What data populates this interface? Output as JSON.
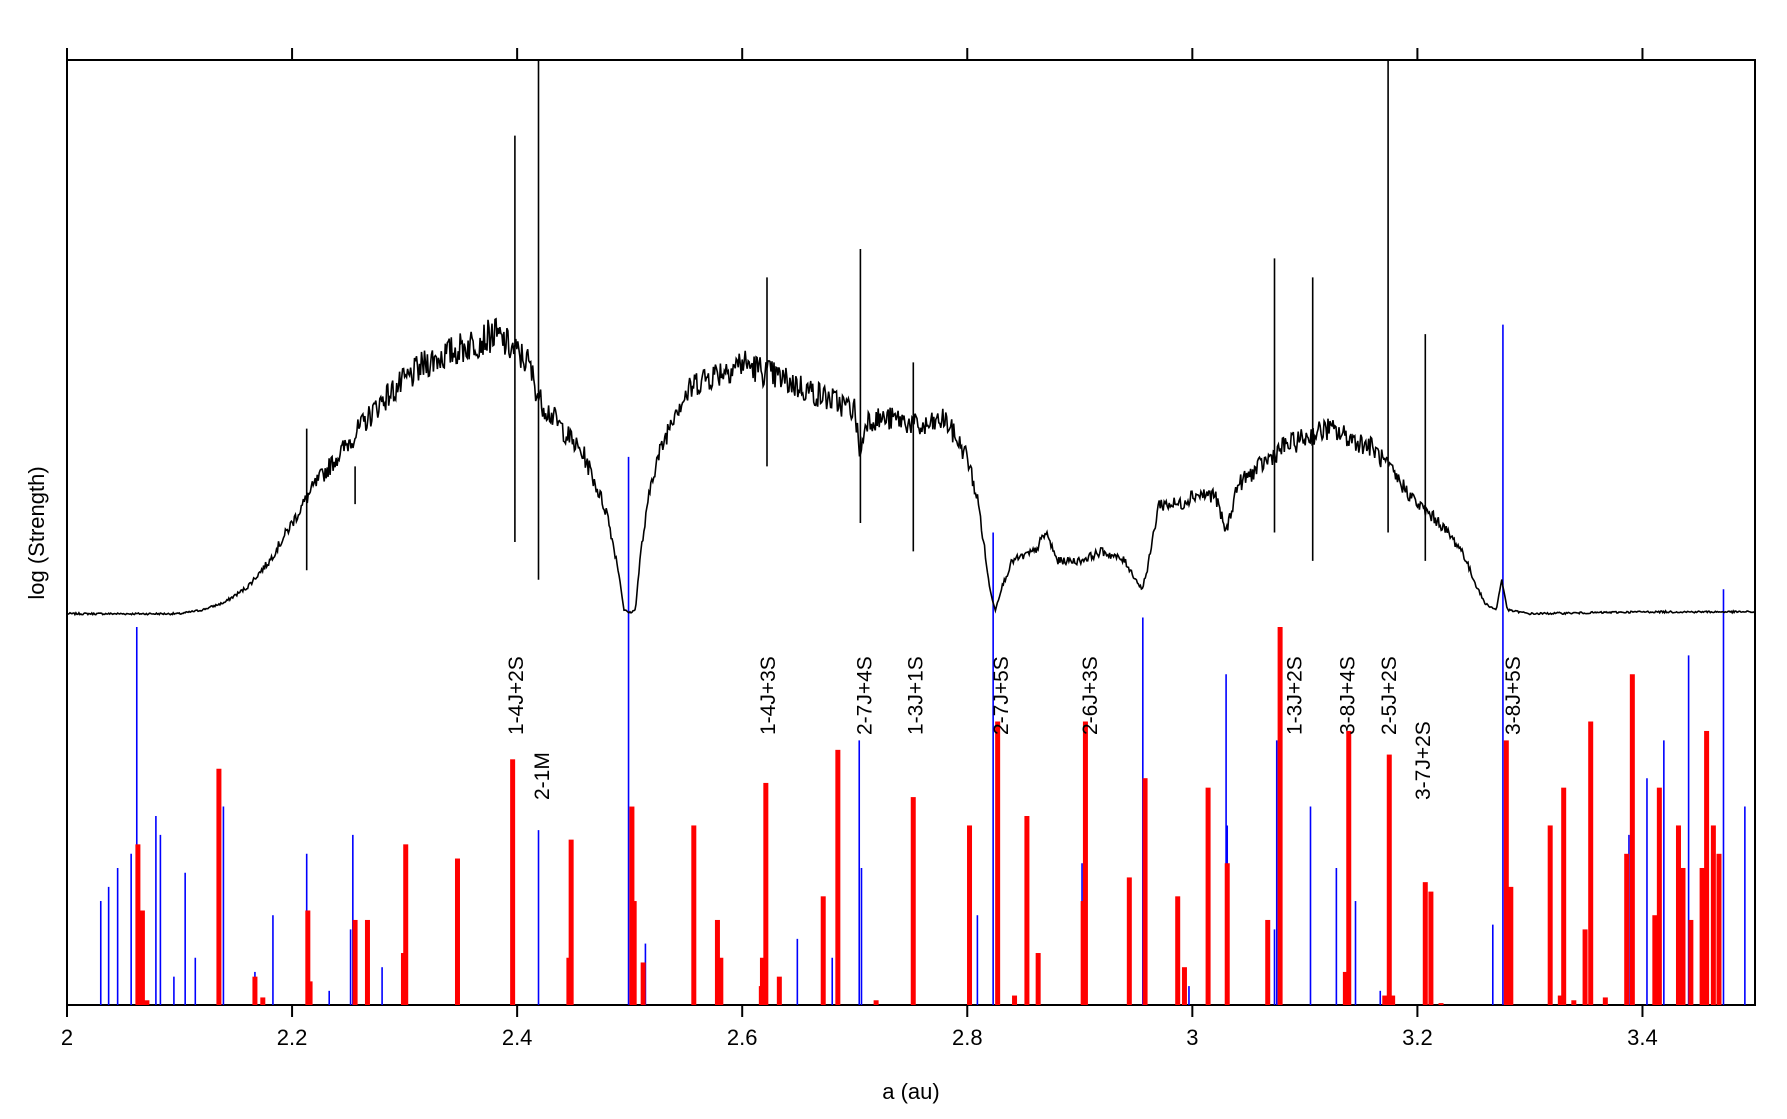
{
  "chart_data": {
    "type": "bar",
    "xlabel": "a (au)",
    "ylabel": "log (Strength)",
    "xlim": [
      2.0,
      3.5
    ],
    "ylim": [
      0,
      1
    ],
    "x_ticks": [
      2,
      2.2,
      2.4,
      2.6,
      2.8,
      3,
      3.2,
      3.4
    ],
    "x_tick_labels": [
      "2",
      "2.2",
      "2.4",
      "2.6",
      "2.8",
      "3",
      "3.2",
      "3.4"
    ],
    "colors": {
      "asteroid_distribution": "#000000",
      "three_body_resonances": "#ff0000",
      "two_body_resonances": "#0000ff"
    },
    "series": [
      {
        "values": [
          [
            2.0,
            0.414
          ],
          [
            2.05,
            0.414
          ],
          [
            2.1,
            0.414
          ],
          [
            2.12,
            0.418
          ],
          [
            2.14,
            0.426
          ],
          [
            2.16,
            0.442
          ],
          [
            2.18,
            0.47
          ],
          [
            2.2,
            0.51
          ],
          [
            2.22,
            0.55
          ],
          [
            2.24,
            0.58
          ],
          [
            2.26,
            0.61
          ],
          [
            2.28,
            0.64
          ],
          [
            2.3,
            0.66
          ],
          [
            2.32,
            0.68
          ],
          [
            2.34,
            0.69
          ],
          [
            2.36,
            0.7
          ],
          [
            2.38,
            0.71
          ],
          [
            2.39,
            0.7
          ],
          [
            2.4,
            0.69
          ],
          [
            2.41,
            0.68
          ],
          [
            2.42,
            0.64
          ],
          [
            2.44,
            0.61
          ],
          [
            2.46,
            0.58
          ],
          [
            2.48,
            0.52
          ],
          [
            2.49,
            0.46
          ],
          [
            2.495,
            0.418
          ],
          [
            2.5,
            0.415
          ],
          [
            2.505,
            0.418
          ],
          [
            2.51,
            0.48
          ],
          [
            2.52,
            0.56
          ],
          [
            2.54,
            0.63
          ],
          [
            2.56,
            0.66
          ],
          [
            2.58,
            0.67
          ],
          [
            2.6,
            0.68
          ],
          [
            2.62,
            0.67
          ],
          [
            2.64,
            0.66
          ],
          [
            2.66,
            0.65
          ],
          [
            2.68,
            0.64
          ],
          [
            2.7,
            0.63
          ],
          [
            2.705,
            0.58
          ],
          [
            2.71,
            0.62
          ],
          [
            2.72,
            0.62
          ],
          [
            2.74,
            0.62
          ],
          [
            2.76,
            0.61
          ],
          [
            2.78,
            0.62
          ],
          [
            2.8,
            0.58
          ],
          [
            2.81,
            0.53
          ],
          [
            2.82,
            0.44
          ],
          [
            2.825,
            0.418
          ],
          [
            2.83,
            0.44
          ],
          [
            2.84,
            0.47
          ],
          [
            2.86,
            0.48
          ],
          [
            2.87,
            0.5
          ],
          [
            2.88,
            0.47
          ],
          [
            2.9,
            0.47
          ],
          [
            2.92,
            0.48
          ],
          [
            2.94,
            0.47
          ],
          [
            2.95,
            0.45
          ],
          [
            2.955,
            0.44
          ],
          [
            2.96,
            0.46
          ],
          [
            2.97,
            0.53
          ],
          [
            2.99,
            0.53
          ],
          [
            3.0,
            0.54
          ],
          [
            3.02,
            0.54
          ],
          [
            3.03,
            0.5
          ],
          [
            3.04,
            0.55
          ],
          [
            3.06,
            0.57
          ],
          [
            3.08,
            0.59
          ],
          [
            3.1,
            0.6
          ],
          [
            3.12,
            0.61
          ],
          [
            3.14,
            0.6
          ],
          [
            3.16,
            0.59
          ],
          [
            3.18,
            0.56
          ],
          [
            3.2,
            0.53
          ],
          [
            3.22,
            0.51
          ],
          [
            3.24,
            0.48
          ],
          [
            3.25,
            0.45
          ],
          [
            3.26,
            0.425
          ],
          [
            3.27,
            0.418
          ],
          [
            3.275,
            0.45
          ],
          [
            3.28,
            0.418
          ],
          [
            3.3,
            0.414
          ],
          [
            3.4,
            0.416
          ],
          [
            3.5,
            0.416
          ]
        ]
      },
      {
        "values": [
          [
            2.063,
            0.17
          ],
          [
            2.067,
            0.1
          ],
          [
            2.071,
            0.005
          ],
          [
            2.135,
            0.25
          ],
          [
            2.167,
            0.03
          ],
          [
            2.174,
            0.008
          ],
          [
            2.214,
            0.1
          ],
          [
            2.216,
            0.025
          ],
          [
            2.256,
            0.09
          ],
          [
            2.267,
            0.09
          ],
          [
            2.301,
            0.17
          ],
          [
            2.299,
            0.055
          ],
          [
            2.347,
            0.155
          ],
          [
            2.396,
            0.26
          ],
          [
            2.448,
            0.175
          ],
          [
            2.446,
            0.05
          ],
          [
            2.502,
            0.21
          ],
          [
            2.504,
            0.11
          ],
          [
            2.512,
            0.045
          ],
          [
            2.557,
            0.19
          ],
          [
            2.578,
            0.09
          ],
          [
            2.581,
            0.05
          ],
          [
            2.617,
            0.02
          ],
          [
            2.621,
            0.235
          ],
          [
            2.618,
            0.05
          ],
          [
            2.633,
            0.03
          ],
          [
            2.672,
            0.115
          ],
          [
            2.685,
            0.27
          ],
          [
            2.719,
            0.005
          ],
          [
            2.752,
            0.22
          ],
          [
            2.802,
            0.19
          ],
          [
            2.827,
            0.3
          ],
          [
            2.842,
            0.01
          ],
          [
            2.853,
            0.2
          ],
          [
            2.863,
            0.055
          ],
          [
            2.903,
            0.11
          ],
          [
            2.905,
            0.3
          ],
          [
            2.944,
            0.135
          ],
          [
            2.958,
            0.24
          ],
          [
            2.987,
            0.115
          ],
          [
            2.993,
            0.04
          ],
          [
            3.014,
            0.23
          ],
          [
            3.031,
            0.15
          ],
          [
            3.067,
            0.09
          ],
          [
            3.078,
            0.4
          ],
          [
            3.139,
            0.29
          ],
          [
            3.136,
            0.035
          ],
          [
            3.171,
            0.01
          ],
          [
            3.175,
            0.265
          ],
          [
            3.178,
            0.01
          ],
          [
            3.207,
            0.13
          ],
          [
            3.212,
            0.12
          ],
          [
            3.221,
            0.002
          ],
          [
            3.279,
            0.28
          ],
          [
            3.283,
            0.125
          ],
          [
            3.318,
            0.19
          ],
          [
            3.327,
            0.01
          ],
          [
            3.33,
            0.23
          ],
          [
            3.339,
            0.005
          ],
          [
            3.349,
            0.08
          ],
          [
            3.354,
            0.3
          ],
          [
            3.367,
            0.008
          ],
          [
            3.391,
            0.35
          ],
          [
            3.386,
            0.16
          ],
          [
            3.411,
            0.095
          ],
          [
            3.415,
            0.23
          ],
          [
            3.432,
            0.19
          ],
          [
            3.436,
            0.145
          ],
          [
            3.443,
            0.09
          ],
          [
            3.453,
            0.145
          ],
          [
            3.457,
            0.29
          ],
          [
            3.463,
            0.19
          ],
          [
            3.468,
            0.16
          ]
        ]
      },
      {
        "values": [
          [
            2.03,
            0.11
          ],
          [
            2.037,
            0.125
          ],
          [
            2.045,
            0.145
          ],
          [
            2.057,
            0.16
          ],
          [
            2.062,
            0.4
          ],
          [
            2.079,
            0.2
          ],
          [
            2.083,
            0.18
          ],
          [
            2.095,
            0.03
          ],
          [
            2.105,
            0.14
          ],
          [
            2.114,
            0.05
          ],
          [
            2.139,
            0.21
          ],
          [
            2.167,
            0.035
          ],
          [
            2.183,
            0.095
          ],
          [
            2.213,
            0.16
          ],
          [
            2.233,
            0.015
          ],
          [
            2.252,
            0.08
          ],
          [
            2.254,
            0.18
          ],
          [
            2.28,
            0.04
          ],
          [
            2.298,
            0.05
          ],
          [
            2.302,
            0.09
          ],
          [
            2.419,
            0.185
          ],
          [
            2.499,
            0.58
          ],
          [
            2.514,
            0.065
          ],
          [
            2.649,
            0.07
          ],
          [
            2.68,
            0.05
          ],
          [
            2.704,
            0.28
          ],
          [
            2.706,
            0.145
          ],
          [
            2.809,
            0.095
          ],
          [
            2.823,
            0.5
          ],
          [
            2.902,
            0.15
          ],
          [
            2.956,
            0.41
          ],
          [
            2.997,
            0.02
          ],
          [
            3.03,
            0.35
          ],
          [
            3.031,
            0.19
          ],
          [
            3.075,
            0.28
          ],
          [
            3.073,
            0.08
          ],
          [
            3.105,
            0.21
          ],
          [
            3.128,
            0.145
          ],
          [
            3.145,
            0.11
          ],
          [
            3.167,
            0.015
          ],
          [
            3.267,
            0.085
          ],
          [
            3.276,
            0.72
          ],
          [
            3.388,
            0.18
          ],
          [
            3.404,
            0.24
          ],
          [
            3.419,
            0.28
          ],
          [
            3.441,
            0.37
          ],
          [
            3.472,
            0.44
          ],
          [
            3.491,
            0.21
          ]
        ]
      }
    ],
    "resonance_labels": [
      {
        "text": "1-4J+2S",
        "a": 2.398
      },
      {
        "text": "2-1M",
        "a": 2.421
      },
      {
        "text": "1-4J+3S",
        "a": 2.622
      },
      {
        "text": "2-7J+4S",
        "a": 2.708
      },
      {
        "text": "1-3J+1S",
        "a": 2.753
      },
      {
        "text": "2-7J+5S",
        "a": 2.829
      },
      {
        "text": "2-6J+3S",
        "a": 2.908
      },
      {
        "text": "1-3J+2S",
        "a": 3.09
      },
      {
        "text": "3-8J+4S",
        "a": 3.137
      },
      {
        "text": "2-5J+2S",
        "a": 3.174
      },
      {
        "text": "3-7J+2S",
        "a": 3.204
      },
      {
        "text": "3-8J+5S",
        "a": 3.284
      }
    ]
  }
}
